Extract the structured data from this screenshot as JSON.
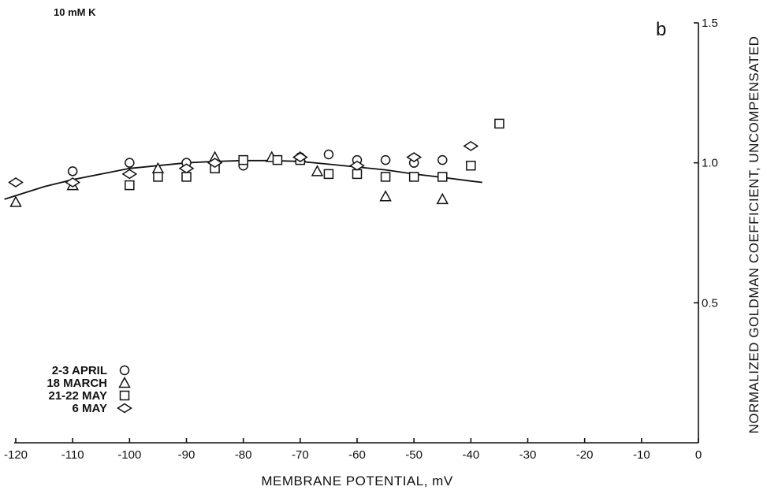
{
  "chart_data": {
    "type": "scatter",
    "corner_label": "10 mM K",
    "panel_letter": "b",
    "title": "",
    "xlabel": "MEMBRANE POTENTIAL, mV",
    "ylabel": "NORMALIZED GOLDMAN COEFFICIENT, UNCOMPENSATED",
    "xlim": [
      -120,
      0
    ],
    "ylim": [
      0,
      1.5
    ],
    "x_ticks": [
      -120,
      -110,
      -100,
      -90,
      -80,
      -70,
      -60,
      -50,
      -40,
      -30,
      -20,
      -10,
      0
    ],
    "x_tick_labels": [
      "-120",
      "-110",
      "-100",
      "-90",
      "-80",
      "-70",
      "-60",
      "-50",
      "-40",
      "-30",
      "-20",
      "-10",
      "0"
    ],
    "y_ticks": [
      0.5,
      1.0,
      1.5
    ],
    "y_tick_labels": [
      "0.5",
      "1.0",
      "1.5"
    ],
    "grid": false,
    "legend_position": "bottom-left",
    "series": [
      {
        "name": "2-3 APRIL",
        "marker": "circle",
        "x": [
          -110,
          -100,
          -90,
          -85,
          -80,
          -70,
          -65,
          -60,
          -55,
          -50,
          -45
        ],
        "y": [
          0.97,
          1.0,
          1.0,
          1.0,
          0.99,
          1.02,
          1.03,
          1.01,
          1.01,
          1.0,
          1.01
        ]
      },
      {
        "name": "18 MARCH",
        "marker": "triangle",
        "x": [
          -120,
          -110,
          -95,
          -85,
          -75,
          -70,
          -67,
          -55,
          -45
        ],
        "y": [
          0.86,
          0.92,
          0.98,
          1.02,
          1.02,
          1.02,
          0.97,
          0.88,
          0.87
        ]
      },
      {
        "name": "21-22 MAY",
        "marker": "square",
        "x": [
          -100,
          -95,
          -90,
          -85,
          -80,
          -74,
          -70,
          -65,
          -60,
          -55,
          -50,
          -45,
          -40,
          -35
        ],
        "y": [
          0.92,
          0.95,
          0.95,
          0.98,
          1.01,
          1.01,
          1.01,
          0.96,
          0.96,
          0.95,
          0.95,
          0.95,
          0.99,
          1.14
        ]
      },
      {
        "name": "6 MAY",
        "marker": "diamond",
        "x": [
          -120,
          -110,
          -100,
          -90,
          -85,
          -70,
          -60,
          -50,
          -40
        ],
        "y": [
          0.93,
          0.93,
          0.96,
          0.98,
          1.0,
          1.02,
          0.99,
          1.02,
          1.06
        ]
      }
    ],
    "fit_curve": {
      "x": [
        -122,
        -115,
        -110,
        -105,
        -100,
        -95,
        -90,
        -85,
        -80,
        -75,
        -70,
        -65,
        -60,
        -55,
        -50,
        -45,
        -40,
        -38
      ],
      "y": [
        0.87,
        0.915,
        0.94,
        0.96,
        0.98,
        0.99,
        1.0,
        1.005,
        1.008,
        1.008,
        1.005,
        0.995,
        0.985,
        0.975,
        0.96,
        0.948,
        0.935,
        0.93
      ]
    }
  }
}
